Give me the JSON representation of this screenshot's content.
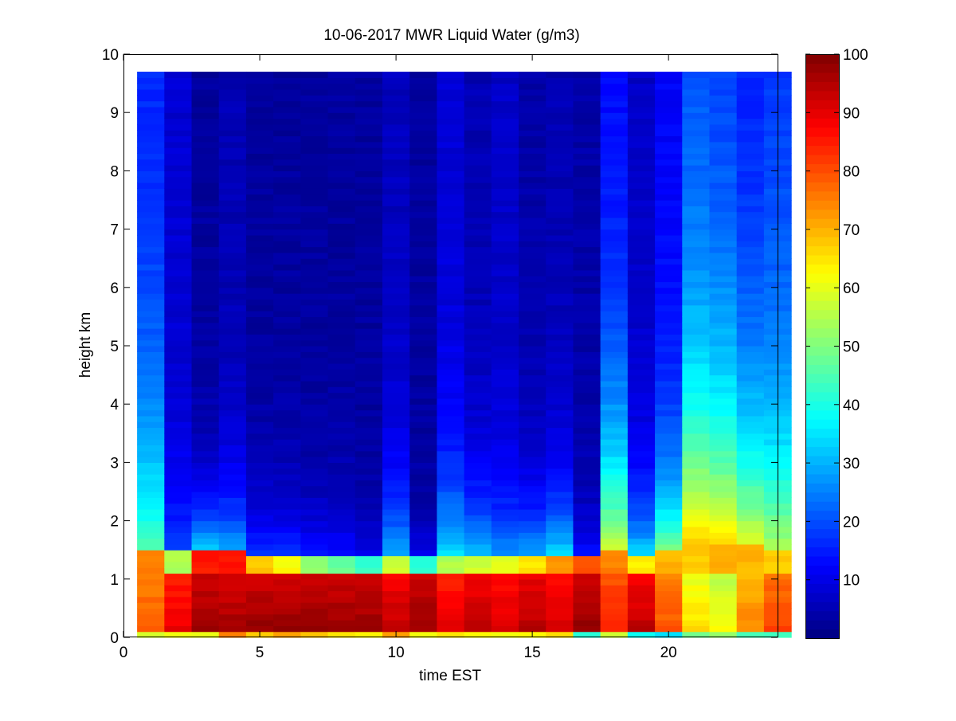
{
  "chart_data": {
    "type": "heatmap",
    "title": "10-06-2017 MWR Liquid Water (g/m3)",
    "xlabel": "time EST",
    "ylabel": "height km",
    "xlim": [
      0,
      24
    ],
    "ylim": [
      0,
      10
    ],
    "x_ticks": [
      "0",
      "5",
      "10",
      "15",
      "20"
    ],
    "y_ticks": [
      "0",
      "1",
      "2",
      "3",
      "4",
      "5",
      "6",
      "7",
      "8",
      "9",
      "10"
    ],
    "colorbar": {
      "colormap": "jet",
      "range": [
        0,
        100
      ],
      "ticks": [
        "10",
        "20",
        "30",
        "40",
        "50",
        "60",
        "70",
        "80",
        "90",
        "100"
      ]
    },
    "grid": false,
    "x_start": 0,
    "x_step": 1,
    "y_levels_km": [
      0.05,
      0.15,
      0.25,
      0.35,
      0.45,
      0.55,
      0.65,
      0.75,
      0.85,
      0.95,
      1.05,
      1.15,
      1.25,
      1.35,
      1.45,
      1.55,
      1.65,
      1.75,
      1.85,
      1.95,
      2.05,
      2.15,
      2.25,
      2.35,
      2.45,
      2.55,
      2.65,
      2.75,
      2.85,
      2.95,
      3.05,
      3.15,
      3.25,
      3.35,
      3.45,
      3.55,
      3.65,
      3.75,
      3.85,
      3.95,
      4.05,
      4.15,
      4.25,
      4.35,
      4.45,
      4.55,
      4.65,
      4.75,
      4.85,
      4.95,
      5.05,
      5.15,
      5.25,
      5.35,
      5.45,
      5.55,
      5.65,
      5.75,
      5.85,
      5.95,
      6.05,
      6.15,
      6.25,
      6.35,
      6.45,
      6.55,
      6.65,
      6.75,
      6.85,
      6.95,
      7.05,
      7.15,
      7.25,
      7.35,
      7.45,
      7.55,
      7.65,
      7.75,
      7.85,
      7.95,
      8.05,
      8.15,
      8.25,
      8.35,
      8.45,
      8.55,
      8.65,
      8.75,
      8.85,
      8.95,
      9.05,
      9.15,
      9.25,
      9.35,
      9.45,
      9.55,
      9.65
    ],
    "columns": [
      {
        "hours": 1,
        "bottom": 60,
        "c1": 80,
        "c2": 75,
        "top": 15
      },
      {
        "hours": 1,
        "bottom": 60,
        "c1": 90,
        "c2": 55,
        "top": 8
      },
      {
        "hours": 1,
        "bottom": 62,
        "c1": 98,
        "c2": 85,
        "top": 3
      },
      {
        "hours": 1,
        "bottom": 75,
        "c1": 97,
        "c2": 85,
        "top": 5
      },
      {
        "hours": 1,
        "bottom": 68,
        "c1": 98,
        "c2": 68,
        "top": 3
      },
      {
        "hours": 1,
        "bottom": 72,
        "c1": 98,
        "c2": 62,
        "top": 3
      },
      {
        "hours": 1,
        "bottom": 68,
        "c1": 98,
        "c2": 52,
        "top": 3
      },
      {
        "hours": 1,
        "bottom": 66,
        "c1": 98,
        "c2": 48,
        "top": 3
      },
      {
        "hours": 1,
        "bottom": 64,
        "c1": 98,
        "c2": 42,
        "top": 3
      },
      {
        "hours": 1,
        "bottom": 72,
        "c1": 94,
        "c2": 58,
        "top": 6
      },
      {
        "hours": 1,
        "bottom": 60,
        "c1": 98,
        "c2": 42,
        "top": 3
      },
      {
        "hours": 1,
        "bottom": 64,
        "c1": 90,
        "c2": 55,
        "top": 8
      },
      {
        "hours": 1,
        "bottom": 64,
        "c1": 94,
        "c2": 58,
        "top": 5
      },
      {
        "hours": 1,
        "bottom": 60,
        "c1": 92,
        "c2": 60,
        "top": 7
      },
      {
        "hours": 1,
        "bottom": 62,
        "c1": 95,
        "c2": 65,
        "top": 4
      },
      {
        "hours": 1,
        "bottom": 66,
        "c1": 92,
        "c2": 72,
        "top": 5
      },
      {
        "hours": 1,
        "bottom": 40,
        "c1": 98,
        "c2": 80,
        "top": 4
      },
      {
        "hours": 1,
        "bottom": 58,
        "c1": 85,
        "c2": 75,
        "top": 12
      },
      {
        "hours": 1,
        "bottom": 38,
        "c1": 94,
        "c2": 64,
        "top": 7
      },
      {
        "hours": 1,
        "bottom": 35,
        "c1": 80,
        "c2": 70,
        "top": 12
      },
      {
        "hours": 1,
        "bottom": 48,
        "c1": 66,
        "c2": 68,
        "top": 18
      },
      {
        "hours": 1,
        "bottom": 52,
        "c1": 62,
        "c2": 70,
        "top": 16
      },
      {
        "hours": 1,
        "bottom": 44,
        "c1": 75,
        "c2": 70,
        "top": 14
      },
      {
        "hours": 1,
        "bottom": 44,
        "c1": 82,
        "c2": 68,
        "top": 17
      }
    ],
    "column_profiles": [
      {
        "cloud_top_km": 1.5,
        "mid_value": 45,
        "decay_km": 2.5
      },
      {
        "cloud_top_km": 1.5,
        "mid_value": 20,
        "decay_km": 1.0
      },
      {
        "cloud_top_km": 1.5,
        "mid_value": 35,
        "decay_km": 0.8
      },
      {
        "cloud_top_km": 1.5,
        "mid_value": 30,
        "decay_km": 1.0
      },
      {
        "cloud_top_km": 1.4,
        "mid_value": 18,
        "decay_km": 0.9
      },
      {
        "cloud_top_km": 1.4,
        "mid_value": 18,
        "decay_km": 0.9
      },
      {
        "cloud_top_km": 1.4,
        "mid_value": 15,
        "decay_km": 0.8
      },
      {
        "cloud_top_km": 1.4,
        "mid_value": 15,
        "decay_km": 0.8
      },
      {
        "cloud_top_km": 1.4,
        "mid_value": 12,
        "decay_km": 0.6
      },
      {
        "cloud_top_km": 1.4,
        "mid_value": 30,
        "decay_km": 1.2
      },
      {
        "cloud_top_km": 1.4,
        "mid_value": 12,
        "decay_km": 0.5
      },
      {
        "cloud_top_km": 1.4,
        "mid_value": 35,
        "decay_km": 1.4
      },
      {
        "cloud_top_km": 1.4,
        "mid_value": 33,
        "decay_km": 1.1
      },
      {
        "cloud_top_km": 1.4,
        "mid_value": 28,
        "decay_km": 1.0
      },
      {
        "cloud_top_km": 1.4,
        "mid_value": 30,
        "decay_km": 1.0
      },
      {
        "cloud_top_km": 1.4,
        "mid_value": 35,
        "decay_km": 1.1
      },
      {
        "cloud_top_km": 1.4,
        "mid_value": 15,
        "decay_km": 0.6
      },
      {
        "cloud_top_km": 1.5,
        "mid_value": 58,
        "decay_km": 2.2
      },
      {
        "cloud_top_km": 1.4,
        "mid_value": 35,
        "decay_km": 1.0
      },
      {
        "cloud_top_km": 1.5,
        "mid_value": 50,
        "decay_km": 1.4
      },
      {
        "cloud_top_km": 1.6,
        "mid_value": 68,
        "decay_km": 2.8
      },
      {
        "cloud_top_km": 1.6,
        "mid_value": 66,
        "decay_km": 2.8
      },
      {
        "cloud_top_km": 1.6,
        "mid_value": 60,
        "decay_km": 2.4
      },
      {
        "cloud_top_km": 1.5,
        "mid_value": 55,
        "decay_km": 2.4
      }
    ]
  }
}
